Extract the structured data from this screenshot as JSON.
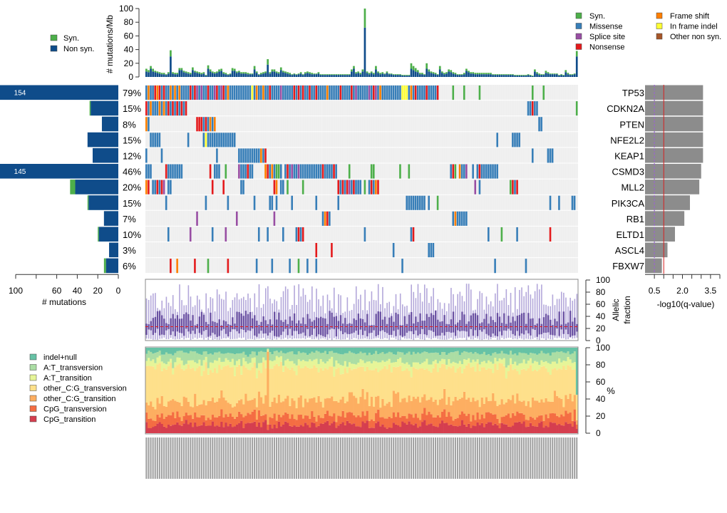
{
  "chart_data": [
    {
      "type": "bar",
      "id": "tmb",
      "title": "",
      "ylabel": "# mutations/Mb",
      "ylim": [
        0,
        100
      ],
      "yticks": [
        0,
        20,
        40,
        60,
        80,
        100
      ],
      "legend": {
        "position": "top-left",
        "items": [
          {
            "label": "Syn.",
            "color": "#4DAF4A"
          },
          {
            "label": "Non syn.",
            "color": "#0F4C8A"
          }
        ]
      },
      "series": [
        {
          "name": "Non syn.",
          "values": [
            8,
            7,
            12,
            8,
            7,
            6,
            5,
            4,
            4,
            3,
            5,
            30,
            5,
            4,
            4,
            10,
            10,
            7,
            6,
            5,
            4,
            10,
            7,
            6,
            5,
            4,
            5,
            2,
            12,
            8,
            6,
            5,
            6,
            8,
            9,
            5,
            4,
            3,
            4,
            9,
            9,
            6,
            7,
            5,
            5,
            5,
            4,
            4,
            4,
            11,
            6,
            3,
            4,
            5,
            6,
            18,
            5,
            8,
            8,
            6,
            5,
            10,
            7,
            6,
            5,
            4,
            3,
            4,
            3,
            4,
            5,
            3,
            5,
            6,
            5,
            4,
            4,
            4,
            5,
            3,
            3,
            3,
            3,
            3,
            3,
            3,
            3,
            3,
            3,
            3,
            3,
            3,
            3,
            8,
            12,
            5,
            6,
            4,
            8,
            72,
            6,
            4,
            6,
            4,
            11,
            6,
            4,
            5,
            4,
            6,
            4,
            4,
            3,
            3,
            3,
            3,
            2,
            2,
            2,
            2,
            12,
            10,
            8,
            7,
            4,
            4,
            3,
            12,
            8,
            6,
            5,
            4,
            3,
            11,
            6,
            4,
            5,
            8,
            7,
            5,
            4,
            3,
            3,
            3,
            4,
            9,
            7,
            5,
            5,
            4,
            4,
            4,
            4,
            4,
            4,
            4,
            4,
            3,
            3,
            3,
            3,
            3,
            3,
            3,
            3,
            3,
            3,
            2,
            2,
            2,
            2,
            2,
            2,
            3,
            2,
            1,
            8,
            5,
            3,
            3,
            3,
            6,
            5,
            4,
            4,
            4,
            4,
            2,
            3,
            2,
            7,
            4,
            3,
            3,
            4,
            30,
            9,
            8,
            6,
            5,
            4,
            3,
            3,
            3,
            2,
            6,
            5,
            4,
            4,
            4,
            3,
            2,
            1,
            1
          ],
          "color": "#0F4C8A"
        },
        {
          "name": "Syn.",
          "values": [
            4,
            3,
            4,
            4,
            2,
            2,
            2,
            2,
            2,
            1,
            2,
            9,
            2,
            2,
            2,
            3,
            3,
            2,
            2,
            2,
            2,
            4,
            2,
            2,
            2,
            2,
            2,
            1,
            5,
            3,
            2,
            2,
            2,
            3,
            3,
            2,
            2,
            1,
            1,
            4,
            3,
            2,
            2,
            2,
            2,
            2,
            2,
            1,
            1,
            5,
            2,
            1,
            2,
            2,
            2,
            8,
            2,
            3,
            3,
            2,
            2,
            4,
            2,
            2,
            2,
            2,
            1,
            1,
            1,
            1,
            2,
            1,
            2,
            2,
            2,
            2,
            1,
            1,
            2,
            1,
            1,
            1,
            1,
            1,
            1,
            1,
            1,
            1,
            1,
            1,
            1,
            1,
            1,
            3,
            4,
            2,
            2,
            2,
            3,
            40,
            2,
            2,
            2,
            2,
            5,
            2,
            2,
            2,
            1,
            2,
            1,
            1,
            1,
            1,
            1,
            1,
            1,
            1,
            1,
            1,
            8,
            6,
            5,
            3,
            2,
            2,
            1,
            8,
            3,
            2,
            2,
            2,
            1,
            5,
            2,
            2,
            2,
            3,
            3,
            2,
            2,
            1,
            1,
            1,
            2,
            3,
            2,
            2,
            2,
            2,
            2,
            2,
            2,
            2,
            2,
            2,
            2,
            1,
            1,
            1,
            1,
            1,
            1,
            1,
            1,
            1,
            1,
            1,
            1,
            1,
            1,
            1,
            1,
            1,
            1,
            1,
            3,
            2,
            2,
            1,
            1,
            3,
            2,
            1,
            1,
            1,
            1,
            1,
            1,
            1,
            3,
            2,
            1,
            1,
            1,
            8,
            3,
            3,
            2,
            2,
            2,
            1,
            1,
            1,
            1,
            2,
            2,
            1,
            1,
            1,
            1,
            1,
            1,
            1
          ],
          "color": "#4DAF4A"
        }
      ]
    },
    {
      "type": "heatmap",
      "id": "oncoprint",
      "n_samples": 196,
      "legend": {
        "position": "top-right",
        "items": [
          {
            "key": "S",
            "label": "Syn.",
            "color": "#4DAF4A"
          },
          {
            "key": "M",
            "label": "Missense",
            "color": "#377EB8"
          },
          {
            "key": "P",
            "label": "Splice site",
            "color": "#984EA3"
          },
          {
            "key": "N",
            "label": "Nonsense",
            "color": "#E41A1C"
          },
          {
            "key": "F",
            "label": "Frame shift",
            "color": "#FF7F00"
          },
          {
            "key": "I",
            "label": "In frame indel",
            "color": "#FFFF33"
          },
          {
            "key": "O",
            "label": "Other non syn.",
            "color": "#A65628"
          }
        ]
      },
      "empty_color": "#EFEFEF",
      "encoding": "run-length: each token is <count><key>, key '.' = no mutation",
      "genes": [
        {
          "name": "TP53",
          "percent": "79%",
          "count_label": "154",
          "nonsyn": 154,
          "syn": 0,
          "q": 3.1,
          "row": "1M1F2M1N1F1N1M1N2M1F1M1F1M1F4M1N1M1N1P1M1P2M1N2M1P1N1M1P1N1M1F5M1M1M1M1M1M1I1M1F2M1F2M1N4M1P5M1N1M1N1M1N2M1N2M1N4M1F5M1N4M1N1M1P5M1P1M1N1P1M1F9M1I2I1M1F1M1N4M1N4M1N6.1S4.1S6.1S23.1S4.1S7."
        },
        {
          "name": "CDKN2A",
          "percent": "15%",
          "count_label": "",
          "nonsyn": 27,
          "syn": 1,
          "q": 3.1,
          "row": "1N1M1F3M1F1M1F1M1N1M1N1M1N1M1N1M1N154.2M1N2M17.1S19."
        },
        {
          "name": "PTEN",
          "percent": "8%",
          "count_label": "",
          "nonsyn": 16,
          "syn": 0,
          "q": 3.1,
          "row": "1F1M21.3N1M1N1M1F1M1F146.2M19."
        },
        {
          "name": "NFE2L2",
          "percent": "15%",
          "count_label": "",
          "nonsyn": 30,
          "syn": 0,
          "q": 3.1,
          "row": "2.5M12.1M6.1M1I13M118.1M6.4M18."
        },
        {
          "name": "KEAP1",
          "percent": "12%",
          "count_label": "",
          "nonsyn": 25,
          "syn": 0,
          "q": 3.1,
          "row": "1M6.1M24.1M9.10M1F1M1N120.1M6.3M17."
        },
        {
          "name": "CSMD3",
          "percent": "46%",
          "count_label": "145",
          "nonsyn": 145,
          "syn": 0,
          "q": 3.0,
          "row": "3M6.1N7M12.1N1.3M2.1S5.1P3M1N2M5.1F1N1M1F1M2S1M1.1M1N1M1P2M1P10M1N4M1N1M2.3.1S9.2S11.1S3.1S18.1M1N1S1.1F2M1P2.1M1.1M1N8M25."
        },
        {
          "name": "MLL2",
          "percent": "20%",
          "count_label": "",
          "nonsyn": 42,
          "syn": 5,
          "q": 2.9,
          "row": "1F1N1.2M1N1M1N1P1.2M18.1N4.1N7.2M13.1N1F1.2M1.1S6.1S15.1N1M1N1M1N1P1M1N3M1.1S1.1M1N1M1F1N43.1P1.1M13.1S1N1M1N9."
        },
        {
          "name": "PIK3CA",
          "percent": "15%",
          "count_label": "",
          "nonsyn": 29,
          "syn": 1,
          "q": 2.4,
          "row": "9.1M17.1M9.1M11.1M6.2M1.1M6.1M10.1M9.1M30.9M1.1M3.1S50.1M3.1M5.2M2.2M7.1M12."
        },
        {
          "name": "RB1",
          "percent": "7%",
          "count_label": "",
          "nonsyn": 14,
          "syn": 0,
          "q": 2.1,
          "row": "23.1P17.1P16.1P21.1M1F1N1M55.1M1F3M2M116.1N17."
        },
        {
          "name": "ELTD1",
          "percent": "10%",
          "count_label": "",
          "nonsyn": 19,
          "syn": 1,
          "q": 1.6,
          "row": "10.1M9.1P9.1M5.1P14.1M3.1M6.1M5.1M1N1M1N27.1M20.1M1N33.1M5.1S6.1M14.1N9."
        },
        {
          "name": "ASCL4",
          "percent": "3%",
          "count_label": "",
          "nonsyn": 9,
          "syn": 0,
          "q": 1.2,
          "row": "77.1N6.1N27.1M15.3M100."
        },
        {
          "name": "FBXW7",
          "percent": "6%",
          "count_label": "",
          "nonsyn": 12,
          "syn": 2,
          "q": 0.9,
          "row": "11.1N2.1F7.1N5.1S8.1N12.1M6.1M7.1M3.1S3.1M3.1M38.1M41.1M13.1M13."
        }
      ],
      "left_axis": {
        "label": "# mutations",
        "ticks": [
          100,
          60,
          40,
          20,
          0
        ],
        "lim": [
          0,
          100
        ]
      },
      "right_axis": {
        "label": "-log10(q-value)",
        "ticks": [
          0.5,
          2.0,
          3.5
        ],
        "lim": [
          0,
          4
        ],
        "threshold_solid": 1.0,
        "threshold_dashed": 0.5
      }
    },
    {
      "type": "boxplot",
      "id": "allelic_fraction",
      "ylabel": "Allelic fraction",
      "ylim": [
        0,
        100
      ],
      "yticks": [
        0,
        20,
        40,
        60,
        80,
        100
      ],
      "median_line": 23
    },
    {
      "type": "area",
      "id": "spectrum",
      "ylabel": "%",
      "ylim": [
        0,
        100
      ],
      "yticks": [
        0,
        20,
        40,
        60,
        80,
        100
      ],
      "legend": {
        "position": "left",
        "items": [
          {
            "label": "indel+null",
            "color": "#66C2A5"
          },
          {
            "label": "A:T_transversion",
            "color": "#ABDDA4"
          },
          {
            "label": "A:T_transition",
            "color": "#E6F598"
          },
          {
            "label": "other_C:G_transversion",
            "color": "#FEE08B"
          },
          {
            "label": "other_C:G_transition",
            "color": "#FDAE61"
          },
          {
            "label": "CpG_transversion",
            "color": "#F46D43"
          },
          {
            "label": "CpG_transition",
            "color": "#D53E4F"
          }
        ]
      },
      "mean_fractions": [
        6,
        10,
        8,
        38,
        18,
        10,
        10
      ]
    }
  ]
}
